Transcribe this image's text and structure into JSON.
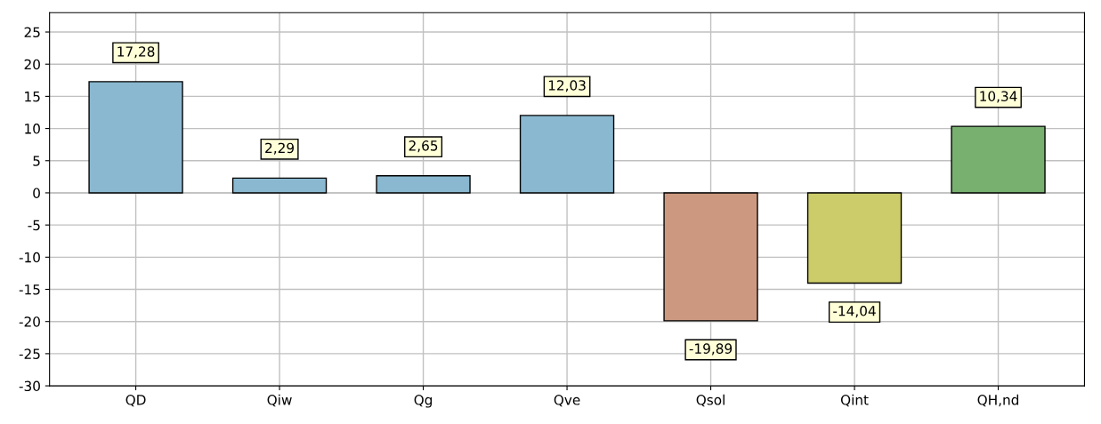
{
  "chart_data": {
    "type": "bar",
    "categories": [
      "QD",
      "Qiw",
      "Qg",
      "Qve",
      "Qsol",
      "Qint",
      "QH,nd"
    ],
    "values": [
      17.28,
      2.29,
      2.65,
      12.03,
      -19.89,
      -14.04,
      10.34
    ],
    "value_labels": [
      "17,28",
      "2,29",
      "2,65",
      "12,03",
      "-19,89",
      "-14,04",
      "10,34"
    ],
    "colors": [
      "#8ab8d0",
      "#8ab8d0",
      "#8ab8d0",
      "#8ab8d0",
      "#cc9980",
      "#cccc6a",
      "#78b070"
    ],
    "ylim": [
      -30,
      28
    ],
    "yticks": [
      -30,
      -25,
      -20,
      -15,
      -10,
      -5,
      0,
      5,
      10,
      15,
      20,
      25
    ],
    "grid": true
  }
}
